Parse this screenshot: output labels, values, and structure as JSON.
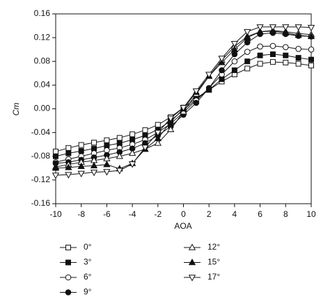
{
  "chart_data": {
    "type": "line",
    "xlabel": "AOA",
    "ylabel": "Cm",
    "x": [
      -10,
      -9,
      -8,
      -7,
      -6,
      -5,
      -4,
      -3,
      -2,
      -1,
      0,
      1,
      2,
      3,
      4,
      5,
      6,
      7,
      8,
      9,
      10
    ],
    "xlim": [
      -10,
      10
    ],
    "xticks": [
      -10,
      -8,
      -6,
      -4,
      -2,
      0,
      2,
      4,
      6,
      8,
      10
    ],
    "ylim": [
      -0.16,
      0.16
    ],
    "yticks": [
      -0.16,
      -0.12,
      -0.08,
      -0.04,
      {
        "value": 0,
        "label": "0.00"
      },
      0.04,
      0.08,
      0.12,
      0.16
    ],
    "series": [
      {
        "name": "0°",
        "color": "#111111",
        "marker": "square",
        "filled": false,
        "values": [
          -0.072,
          -0.066,
          -0.061,
          -0.057,
          -0.053,
          -0.049,
          -0.043,
          -0.036,
          -0.027,
          -0.014,
          0.002,
          0.018,
          0.032,
          0.046,
          0.058,
          0.068,
          0.076,
          0.079,
          0.078,
          0.076,
          0.073
        ]
      },
      {
        "name": "3°",
        "color": "#111111",
        "marker": "square",
        "filled": true,
        "values": [
          -0.08,
          -0.075,
          -0.071,
          -0.067,
          -0.062,
          -0.058,
          -0.052,
          -0.045,
          -0.035,
          -0.02,
          -0.002,
          0.016,
          0.032,
          0.05,
          0.065,
          0.08,
          0.09,
          0.092,
          0.09,
          0.086,
          0.083
        ]
      },
      {
        "name": "6°",
        "color": "#111111",
        "marker": "circle",
        "filled": false,
        "values": [
          -0.09,
          -0.085,
          -0.08,
          -0.075,
          -0.07,
          -0.066,
          -0.06,
          -0.052,
          -0.04,
          -0.025,
          -0.006,
          0.014,
          0.035,
          0.058,
          0.08,
          0.096,
          0.105,
          0.106,
          0.104,
          0.101,
          0.1
        ]
      },
      {
        "name": "9°",
        "color": "#111111",
        "marker": "circle",
        "filled": true,
        "values": [
          -0.092,
          -0.09,
          -0.086,
          -0.082,
          -0.078,
          -0.073,
          -0.067,
          -0.058,
          -0.045,
          -0.03,
          -0.01,
          0.01,
          0.035,
          0.065,
          0.092,
          0.112,
          0.126,
          0.128,
          0.126,
          0.123,
          0.122
        ]
      },
      {
        "name": "12°",
        "color": "#111111",
        "marker": "triangle-up",
        "filled": false,
        "values": [
          -0.098,
          -0.094,
          -0.09,
          -0.087,
          -0.084,
          -0.08,
          -0.075,
          -0.068,
          -0.058,
          -0.035,
          -0.005,
          0.025,
          0.055,
          0.082,
          0.105,
          0.122,
          0.13,
          0.132,
          0.13,
          0.127,
          0.125
        ]
      },
      {
        "name": "15°",
        "color": "#111111",
        "marker": "triangle-up",
        "filled": true,
        "values": [
          -0.1,
          -0.099,
          -0.097,
          -0.096,
          -0.094,
          -0.101,
          -0.092,
          -0.068,
          -0.05,
          -0.022,
          0,
          0.028,
          0.055,
          0.078,
          0.1,
          0.12,
          0.13,
          0.131,
          0.128,
          0.124,
          0.122
        ]
      },
      {
        "name": "17°",
        "color": "#111111",
        "marker": "triangle-down",
        "filled": false,
        "values": [
          -0.112,
          -0.111,
          -0.109,
          -0.107,
          -0.106,
          -0.104,
          -0.093,
          -0.065,
          -0.04,
          -0.016,
          0.002,
          0.03,
          0.058,
          0.085,
          0.11,
          0.13,
          0.138,
          0.138,
          0.138,
          0.138,
          0.137
        ]
      }
    ]
  }
}
